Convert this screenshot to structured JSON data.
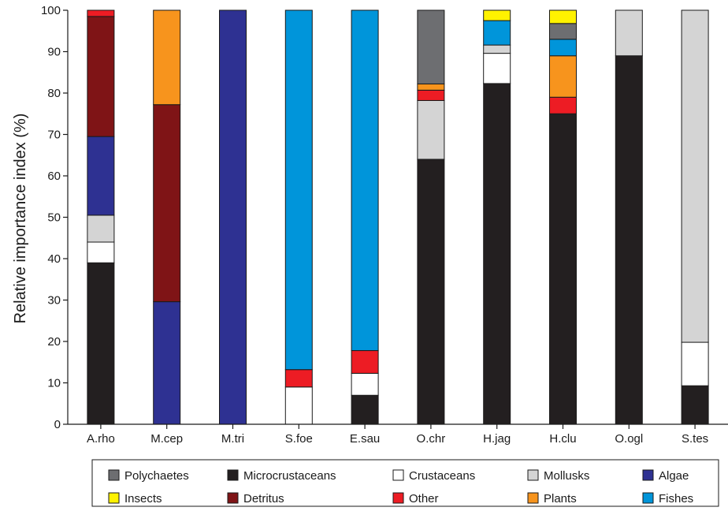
{
  "chart_data": {
    "type": "bar",
    "stacked": true,
    "title": "",
    "xlabel": "",
    "ylabel": "Relative importance index (%)",
    "ylim": [
      0,
      100
    ],
    "yticks": [
      0,
      10,
      20,
      30,
      40,
      50,
      60,
      70,
      80,
      90,
      100
    ],
    "grid": false,
    "legend_position": "bottom",
    "categories": [
      "A.rho",
      "M.cep",
      "M.tri",
      "S.foe",
      "E.sau",
      "O.chr",
      "H.jag",
      "H.clu",
      "O.ogl",
      "S.tes"
    ],
    "series": [
      {
        "name": "Microcrustaceans",
        "color": "#231f20",
        "values": [
          39,
          0,
          0,
          0,
          7,
          64,
          82.3,
          75,
          89,
          9.3
        ]
      },
      {
        "name": "Crustaceans",
        "color": "#ffffff",
        "values": [
          5,
          0,
          0,
          9,
          5.3,
          0,
          7.3,
          0,
          0,
          10.5
        ]
      },
      {
        "name": "Mollusks",
        "color": "#d4d4d4",
        "values": [
          6.5,
          0,
          0,
          0,
          0,
          14.2,
          2,
          0,
          11,
          80.2
        ]
      },
      {
        "name": "Algae",
        "color": "#2e3192",
        "values": [
          19,
          29.6,
          100,
          0,
          0,
          0,
          0,
          0,
          0,
          0
        ]
      },
      {
        "name": "Detritus",
        "color": "#7f1416",
        "values": [
          29,
          47.6,
          0,
          0,
          0,
          0,
          0,
          0,
          0,
          0
        ]
      },
      {
        "name": "Other",
        "color": "#ed1c24",
        "values": [
          1.5,
          0,
          0,
          4.2,
          5.5,
          2.5,
          0,
          4,
          0,
          0
        ]
      },
      {
        "name": "Plants",
        "color": "#f7941d",
        "values": [
          0,
          22.8,
          0,
          0,
          0,
          1.5,
          0,
          10,
          0,
          0
        ]
      },
      {
        "name": "Fishes",
        "color": "#0095da",
        "values": [
          0,
          0,
          0,
          86.8,
          82.2,
          0,
          5.9,
          4,
          0,
          0
        ]
      },
      {
        "name": "Polychaetes",
        "color": "#6d6e71",
        "values": [
          0,
          0,
          0,
          0,
          0,
          17.8,
          0,
          3.8,
          0,
          0
        ]
      },
      {
        "name": "Insects",
        "color": "#fff200",
        "values": [
          0,
          0,
          0,
          0,
          0,
          0,
          2.5,
          3.2,
          0,
          0
        ]
      }
    ],
    "legend": [
      [
        "Polychaetes",
        "Microcrustaceans",
        "Crustaceans",
        "Mollusks",
        "Algae"
      ],
      [
        "Insects",
        "Detritus",
        "Other",
        "Plants",
        "Fishes"
      ]
    ]
  }
}
